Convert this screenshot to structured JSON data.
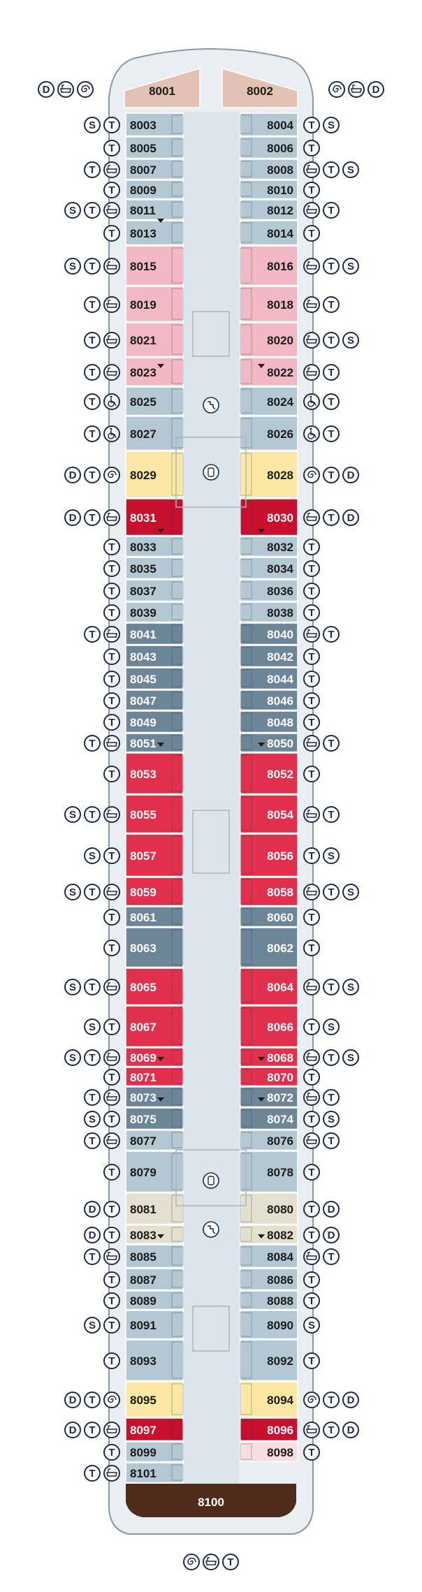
{
  "colors": {
    "hull_fill": "#e9eef3",
    "hull_outline": "#8a97a6",
    "corridor": "#dde5ec",
    "standard": "#b4c8d3",
    "standard_dark": "#6c8597",
    "pink": "#f2b9c4",
    "red_bright": "#e0304d",
    "red_deep": "#c8102e",
    "yellow": "#fce8a2",
    "beige": "#e4dfcf",
    "salmon": "#e2c2b3",
    "brown": "#4e2b1a",
    "light_pink": "#f8dde3",
    "icon_stroke": "#1f2a44"
  },
  "legend_icons": {
    "D": "letter-d",
    "S": "letter-s",
    "T": "letter-t",
    "bathtub": "bathtub-icon",
    "spiral": "whirlpool-icon",
    "wheelchair": "wheelchair-icon"
  },
  "forward": {
    "left": {
      "number": "8001",
      "icons": [
        "D",
        "bathtub",
        "spiral"
      ]
    },
    "right": {
      "number": "8002",
      "icons": [
        "spiral",
        "bathtub",
        "D"
      ]
    }
  },
  "aft": {
    "number": "8100",
    "icons": [
      "spiral",
      "bathtub",
      "T"
    ]
  },
  "port": [
    {
      "number": "8003",
      "icons": [
        "S",
        "T"
      ]
    },
    {
      "number": "8005",
      "icons": [
        "T"
      ]
    },
    {
      "number": "8007",
      "icons": [
        "T",
        "bathtub"
      ]
    },
    {
      "number": "8009",
      "icons": [
        "T"
      ]
    },
    {
      "number": "8011",
      "icons": [
        "S",
        "T",
        "bathtub"
      ]
    },
    {
      "number": "8013",
      "icons": [
        "T"
      ]
    },
    {
      "number": "8015",
      "icons": [
        "S",
        "T",
        "bathtub"
      ]
    },
    {
      "number": "8019",
      "icons": [
        "T",
        "bathtub"
      ]
    },
    {
      "number": "8021",
      "icons": [
        "T",
        "bathtub"
      ]
    },
    {
      "number": "8023",
      "icons": [
        "T",
        "bathtub"
      ]
    },
    {
      "number": "8025",
      "icons": [
        "T",
        "wheelchair"
      ]
    },
    {
      "number": "8027",
      "icons": [
        "T",
        "wheelchair"
      ]
    },
    {
      "number": "8029",
      "icons": [
        "D",
        "T",
        "spiral"
      ]
    },
    {
      "number": "8031",
      "icons": [
        "D",
        "T",
        "bathtub"
      ]
    },
    {
      "number": "8033",
      "icons": [
        "T"
      ]
    },
    {
      "number": "8035",
      "icons": [
        "T"
      ]
    },
    {
      "number": "8037",
      "icons": [
        "T"
      ]
    },
    {
      "number": "8039",
      "icons": [
        "T"
      ]
    },
    {
      "number": "8041",
      "icons": [
        "T",
        "bathtub"
      ]
    },
    {
      "number": "8043",
      "icons": [
        "T"
      ]
    },
    {
      "number": "8045",
      "icons": [
        "T"
      ]
    },
    {
      "number": "8047",
      "icons": [
        "T"
      ]
    },
    {
      "number": "8049",
      "icons": [
        "T"
      ]
    },
    {
      "number": "8051",
      "icons": [
        "T",
        "bathtub"
      ]
    },
    {
      "number": "8053",
      "icons": [
        "T"
      ]
    },
    {
      "number": "8055",
      "icons": [
        "S",
        "T",
        "bathtub"
      ]
    },
    {
      "number": "8057",
      "icons": [
        "S",
        "T"
      ]
    },
    {
      "number": "8059",
      "icons": [
        "S",
        "T",
        "bathtub"
      ]
    },
    {
      "number": "8061",
      "icons": [
        "T"
      ]
    },
    {
      "number": "8063",
      "icons": [
        "T"
      ]
    },
    {
      "number": "8065",
      "icons": [
        "S",
        "T",
        "bathtub"
      ]
    },
    {
      "number": "8067",
      "icons": [
        "S",
        "T"
      ]
    },
    {
      "number": "8069",
      "icons": [
        "S",
        "T",
        "bathtub"
      ]
    },
    {
      "number": "8071",
      "icons": [
        "T"
      ]
    },
    {
      "number": "8073",
      "icons": [
        "T",
        "bathtub"
      ]
    },
    {
      "number": "8075",
      "icons": [
        "S",
        "T"
      ]
    },
    {
      "number": "8077",
      "icons": [
        "T",
        "bathtub"
      ]
    },
    {
      "number": "8079",
      "icons": [
        "T"
      ]
    },
    {
      "number": "8081",
      "icons": [
        "D",
        "T"
      ]
    },
    {
      "number": "8083",
      "icons": [
        "D",
        "T"
      ]
    },
    {
      "number": "8085",
      "icons": [
        "T",
        "bathtub"
      ]
    },
    {
      "number": "8087",
      "icons": [
        "T"
      ]
    },
    {
      "number": "8089",
      "icons": [
        "T"
      ]
    },
    {
      "number": "8091",
      "icons": [
        "S",
        "T"
      ]
    },
    {
      "number": "8093",
      "icons": [
        "T"
      ]
    },
    {
      "number": "8095",
      "icons": [
        "D",
        "T",
        "spiral"
      ]
    },
    {
      "number": "8097",
      "icons": [
        "D",
        "T",
        "bathtub"
      ]
    },
    {
      "number": "8099",
      "icons": [
        "T"
      ]
    },
    {
      "number": "8101",
      "icons": [
        "T",
        "bathtub"
      ]
    }
  ],
  "starboard": [
    {
      "number": "8004",
      "icons": [
        "T",
        "S"
      ]
    },
    {
      "number": "8006",
      "icons": [
        "T"
      ]
    },
    {
      "number": "8008",
      "icons": [
        "bathtub",
        "T",
        "S"
      ]
    },
    {
      "number": "8010",
      "icons": [
        "T"
      ]
    },
    {
      "number": "8012",
      "icons": [
        "bathtub",
        "T"
      ]
    },
    {
      "number": "8014",
      "icons": [
        "T"
      ]
    },
    {
      "number": "8016",
      "icons": [
        "bathtub",
        "T",
        "S"
      ]
    },
    {
      "number": "8018",
      "icons": [
        "bathtub",
        "T"
      ]
    },
    {
      "number": "8020",
      "icons": [
        "bathtub",
        "T",
        "S"
      ]
    },
    {
      "number": "8022",
      "icons": [
        "bathtub",
        "T"
      ]
    },
    {
      "number": "8024",
      "icons": [
        "wheelchair",
        "T"
      ]
    },
    {
      "number": "8026",
      "icons": [
        "wheelchair",
        "T"
      ]
    },
    {
      "number": "8028",
      "icons": [
        "spiral",
        "T",
        "D"
      ]
    },
    {
      "number": "8030",
      "icons": [
        "bathtub",
        "T",
        "D"
      ]
    },
    {
      "number": "8032",
      "icons": [
        "T"
      ]
    },
    {
      "number": "8034",
      "icons": [
        "T"
      ]
    },
    {
      "number": "8036",
      "icons": [
        "T"
      ]
    },
    {
      "number": "8038",
      "icons": [
        "T"
      ]
    },
    {
      "number": "8040",
      "icons": [
        "bathtub",
        "T"
      ]
    },
    {
      "number": "8042",
      "icons": [
        "T"
      ]
    },
    {
      "number": "8044",
      "icons": [
        "T"
      ]
    },
    {
      "number": "8046",
      "icons": [
        "T"
      ]
    },
    {
      "number": "8048",
      "icons": [
        "T"
      ]
    },
    {
      "number": "8050",
      "icons": [
        "bathtub",
        "T"
      ]
    },
    {
      "number": "8052",
      "icons": [
        "T"
      ]
    },
    {
      "number": "8054",
      "icons": [
        "bathtub",
        "T"
      ]
    },
    {
      "number": "8056",
      "icons": [
        "T",
        "S"
      ]
    },
    {
      "number": "8058",
      "icons": [
        "bathtub",
        "T",
        "S"
      ]
    },
    {
      "number": "8060",
      "icons": [
        "T"
      ]
    },
    {
      "number": "8062",
      "icons": [
        "T"
      ]
    },
    {
      "number": "8064",
      "icons": [
        "bathtub",
        "T",
        "S"
      ]
    },
    {
      "number": "8066",
      "icons": [
        "T",
        "S"
      ]
    },
    {
      "number": "8068",
      "icons": [
        "bathtub",
        "T",
        "S"
      ]
    },
    {
      "number": "8070",
      "icons": [
        "T"
      ]
    },
    {
      "number": "8072",
      "icons": [
        "bathtub",
        "T"
      ]
    },
    {
      "number": "8074",
      "icons": [
        "T",
        "S"
      ]
    },
    {
      "number": "8076",
      "icons": [
        "bathtub",
        "T"
      ]
    },
    {
      "number": "8078",
      "icons": [
        "T"
      ]
    },
    {
      "number": "8080",
      "icons": [
        "T",
        "D"
      ]
    },
    {
      "number": "8082",
      "icons": [
        "T",
        "D"
      ]
    },
    {
      "number": "8084",
      "icons": [
        "bathtub",
        "T"
      ]
    },
    {
      "number": "8086",
      "icons": [
        "T"
      ]
    },
    {
      "number": "8088",
      "icons": [
        "T"
      ]
    },
    {
      "number": "8090",
      "icons": [
        "S"
      ]
    },
    {
      "number": "8092",
      "icons": [
        "T"
      ]
    },
    {
      "number": "8094",
      "icons": [
        "spiral",
        "T",
        "D"
      ]
    },
    {
      "number": "8096",
      "icons": [
        "bathtub",
        "T",
        "D"
      ]
    },
    {
      "number": "8098",
      "icons": [
        "T"
      ]
    }
  ]
}
